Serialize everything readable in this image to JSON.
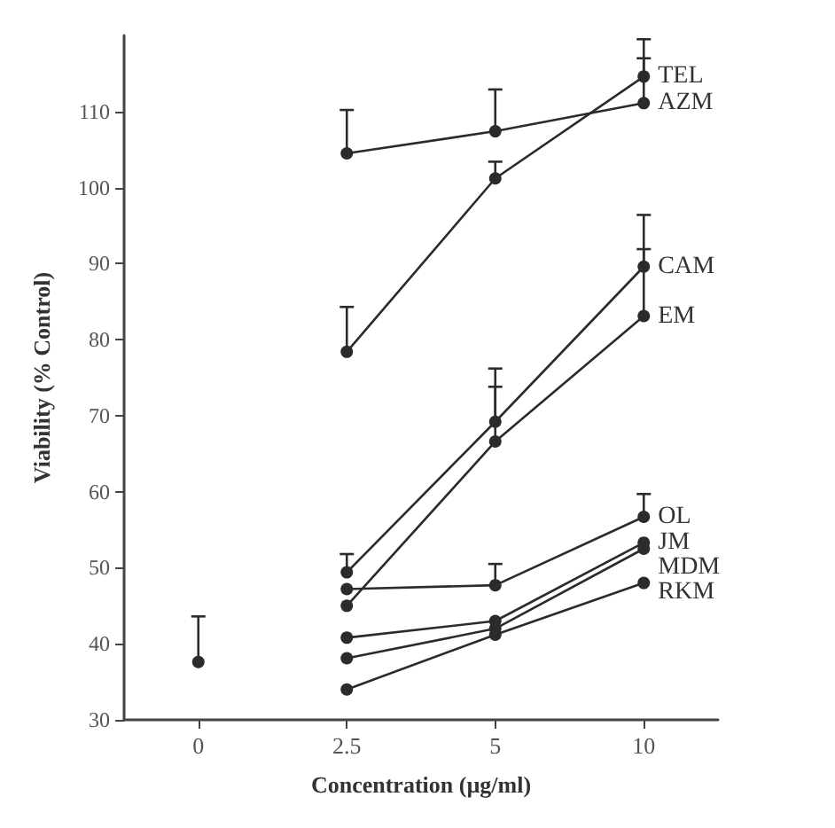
{
  "chart_data": {
    "type": "line",
    "xlabel": "Concentration (µg/ml)",
    "ylabel": "Viability (% Control)",
    "categories": [
      "0",
      "2.5",
      "5",
      "10"
    ],
    "ylim": [
      30,
      120
    ],
    "yticks": [
      30,
      40,
      50,
      60,
      70,
      80,
      90,
      100,
      110
    ],
    "grid": false,
    "legend": false,
    "marker": "circle",
    "line_style": "solid",
    "series": [
      {
        "color": "#2b2b2b",
        "values": [
          37.6,
          null,
          null,
          null
        ],
        "errors": [
          [
            37.6,
            43.6
          ],
          null,
          null,
          null
        ]
      },
      {
        "name": "AZM",
        "color": "#2b2b2b",
        "values": [
          null,
          104.5,
          107.4,
          111.1
        ],
        "errors": [
          null,
          [
            104.5,
            110.2
          ],
          [
            107.4,
            112.9
          ],
          [
            111.1,
            117.0
          ]
        ]
      },
      {
        "name": "TEL",
        "color": "#2b2b2b",
        "values": [
          null,
          78.4,
          101.2,
          114.6
        ],
        "errors": [
          null,
          [
            78.4,
            84.3
          ],
          [
            101.2,
            103.4
          ],
          [
            114.6,
            119.5
          ]
        ]
      },
      {
        "name": "CAM",
        "color": "#2b2b2b",
        "values": [
          null,
          49.4,
          69.2,
          89.6
        ],
        "errors": [
          null,
          [
            49.4,
            51.8
          ],
          [
            69.2,
            76.2
          ],
          [
            89.6,
            96.4
          ]
        ]
      },
      {
        "name": "EM",
        "color": "#2b2b2b",
        "values": [
          null,
          45.0,
          66.6,
          83.1
        ],
        "errors": [
          null,
          null,
          [
            66.6,
            73.8
          ],
          [
            83.1,
            91.9
          ]
        ]
      },
      {
        "name": "OL",
        "color": "#2b2b2b",
        "values": [
          null,
          47.2,
          47.7,
          56.7
        ],
        "errors": [
          null,
          null,
          [
            47.7,
            50.5
          ],
          [
            56.7,
            59.7
          ]
        ]
      },
      {
        "name": "JM",
        "color": "#2b2b2b",
        "values": [
          null,
          40.8,
          43.0,
          53.3
        ]
      },
      {
        "name": "MDM",
        "color": "#2b2b2b",
        "values": [
          null,
          38.1,
          42.0,
          52.5
        ]
      },
      {
        "name": "RKM",
        "color": "#2b2b2b",
        "values": [
          null,
          34.0,
          41.2,
          48.0
        ]
      }
    ]
  }
}
